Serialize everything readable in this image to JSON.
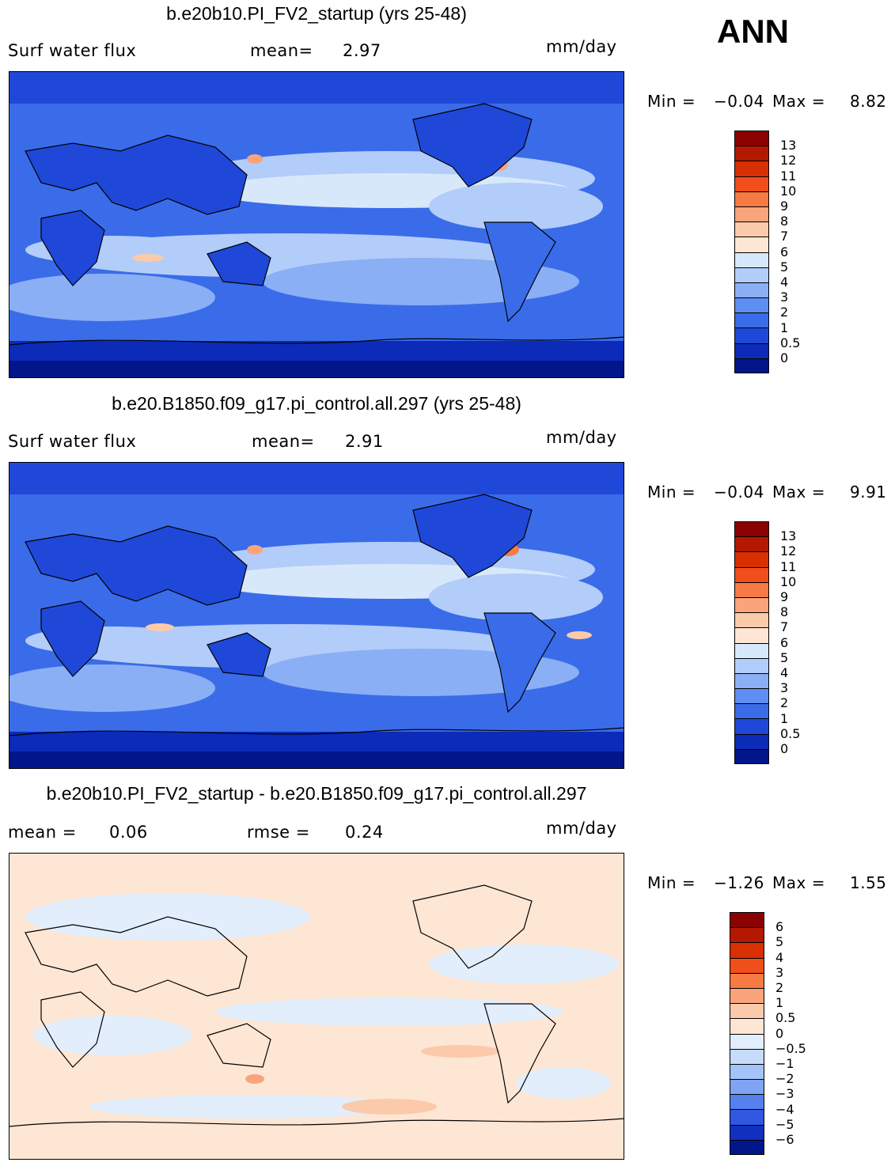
{
  "season_label": "ANN",
  "panels": [
    {
      "title": "b.e20b10.PI_FV2_startup (yrs 25-48)",
      "left_stat_label": "Surf water flux",
      "stat_text_label": "mean=",
      "stat_value": "2.97",
      "units": "mm/day",
      "min_label": "Min =",
      "min_value": "−0.04",
      "max_label": "Max =",
      "max_value": "8.82",
      "colorbar_labels": [
        "13",
        "12",
        "11",
        "10",
        "9",
        "8",
        "7",
        "6",
        "5",
        "4",
        "3",
        "2",
        "1",
        "0.5",
        "0"
      ],
      "colorbar_colors": [
        "#8b0000",
        "#b31800",
        "#d83000",
        "#f04e1a",
        "#f77a45",
        "#f9a47b",
        "#fbcaaa",
        "#fde6d4",
        "#d8e8fb",
        "#b2cdf9",
        "#8aaff5",
        "#5f8ef2",
        "#3a6ce9",
        "#1f48d9",
        "#0b2bb8",
        "#001689"
      ]
    },
    {
      "title": "b.e20.B1850.f09_g17.pi_control.all.297 (yrs 25-48)",
      "left_stat_label": "Surf water flux",
      "stat_text_label": "mean=",
      "stat_value": "2.91",
      "units": "mm/day",
      "min_label": "Min =",
      "min_value": "−0.04",
      "max_label": "Max =",
      "max_value": "9.91",
      "colorbar_labels": [
        "13",
        "12",
        "11",
        "10",
        "9",
        "8",
        "7",
        "6",
        "5",
        "4",
        "3",
        "2",
        "1",
        "0.5",
        "0"
      ],
      "colorbar_colors": [
        "#8b0000",
        "#b31800",
        "#d83000",
        "#f04e1a",
        "#f77a45",
        "#f9a47b",
        "#fbcaaa",
        "#fde6d4",
        "#d8e8fb",
        "#b2cdf9",
        "#8aaff5",
        "#5f8ef2",
        "#3a6ce9",
        "#1f48d9",
        "#0b2bb8",
        "#001689"
      ]
    },
    {
      "title": "b.e20b10.PI_FV2_startup - b.e20.B1850.f09_g17.pi_control.all.297",
      "left_stat_label": "mean =",
      "left_stat_value": "0.06",
      "stat_text_label": "rmse =",
      "stat_value": "0.24",
      "units": "mm/day",
      "min_label": "Min =",
      "min_value": "−1.26",
      "max_label": "Max =",
      "max_value": "1.55",
      "colorbar_labels": [
        "6",
        "5",
        "4",
        "3",
        "2",
        "1",
        "0.5",
        "0",
        "−0.5",
        "−1",
        "−2",
        "−3",
        "−4",
        "−5",
        "−6"
      ],
      "colorbar_colors": [
        "#8b0000",
        "#b31800",
        "#d83000",
        "#f04e1a",
        "#f77a45",
        "#f9a47b",
        "#fbcaaa",
        "#fde6d4",
        "#e2eefb",
        "#c6dcfa",
        "#a4c3f7",
        "#7ea4f3",
        "#5580ee",
        "#3058e0",
        "#1230c0",
        "#001689"
      ]
    }
  ]
}
